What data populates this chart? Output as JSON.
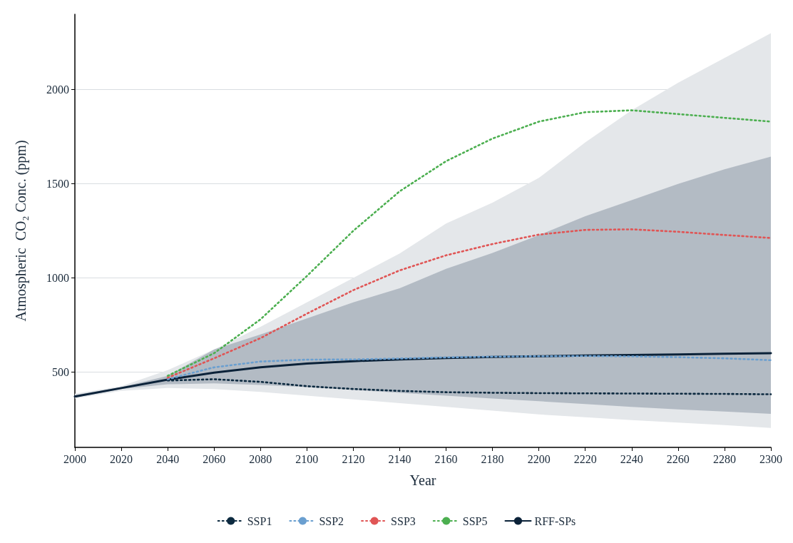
{
  "chart_data": {
    "type": "line",
    "xlabel": "Year",
    "ylabel": "Atmospheric  CO₂ Conc. (ppm)",
    "x": [
      2000,
      2020,
      2040,
      2060,
      2080,
      2100,
      2120,
      2140,
      2160,
      2180,
      2200,
      2220,
      2240,
      2260,
      2280,
      2300
    ],
    "xlim": [
      2000,
      2300
    ],
    "xticks": [
      2000,
      2020,
      2040,
      2060,
      2080,
      2100,
      2120,
      2140,
      2160,
      2180,
      2200,
      2220,
      2240,
      2260,
      2280,
      2300
    ],
    "ylim": [
      100,
      2400
    ],
    "yticks": [
      500,
      1000,
      1500,
      2000
    ],
    "grid": "y",
    "legend": "bottom",
    "marker": "none",
    "series": [
      {
        "color": "#e4e7ea",
        "values": [
          null,
          null,
          null,
          null,
          null,
          null,
          null,
          null,
          null,
          null,
          null,
          null,
          null,
          null,
          null,
          null
        ],
        "lower": [
          360,
          400,
          415,
          410,
          395,
          375,
          355,
          335,
          315,
          295,
          275,
          260,
          245,
          232,
          218,
          203
        ],
        "upper": [
          385,
          425,
          510,
          620,
          740,
          870,
          1000,
          1130,
          1289,
          1400,
          1531,
          1720,
          1890,
          2036,
          2168,
          2300
        ]
      },
      {
        "name": "SSP1",
        "color": "#0d2a40",
        "line_style": "dashed",
        "values": [
          null,
          null,
          455,
          462,
          448,
          425,
          410,
          400,
          393,
          390,
          388,
          387,
          386,
          385,
          384,
          382
        ]
      },
      {
        "name": "SSP2",
        "color": "#6a9fd0",
        "line_style": "dashed",
        "values": [
          null,
          null,
          462,
          525,
          556,
          566,
          567,
          572,
          578,
          582,
          584,
          585,
          583,
          579,
          573,
          563
        ]
      },
      {
        "name": "SSP3",
        "color": "#e05555",
        "line_style": "dashed",
        "values": [
          null,
          null,
          470,
          573,
          680,
          810,
          935,
          1040,
          1120,
          1180,
          1230,
          1255,
          1258,
          1245,
          1228,
          1212
        ]
      },
      {
        "name": "SSP5",
        "color": "#4caf50",
        "line_style": "dashed",
        "values": [
          null,
          null,
          480,
          600,
          780,
          1010,
          1250,
          1460,
          1620,
          1740,
          1830,
          1880,
          1890,
          1870,
          1850,
          1830
        ]
      },
      {
        "name": "RFF-SPs",
        "color": "#0b2239",
        "line_style": "solid",
        "values": [
          370,
          415,
          460,
          497,
          525,
          545,
          558,
          567,
          575,
          580,
          584,
          588,
          591,
          594,
          597,
          600
        ],
        "lower": [
          365,
          410,
          435,
          440,
          432,
          420,
          405,
          390,
          375,
          360,
          345,
          330,
          315,
          302,
          290,
          278
        ],
        "upper": [
          378,
          420,
          480,
          620,
          700,
          785,
          870,
          945,
          1048,
          1133,
          1227,
          1328,
          1413,
          1499,
          1577,
          1644
        ]
      }
    ]
  }
}
